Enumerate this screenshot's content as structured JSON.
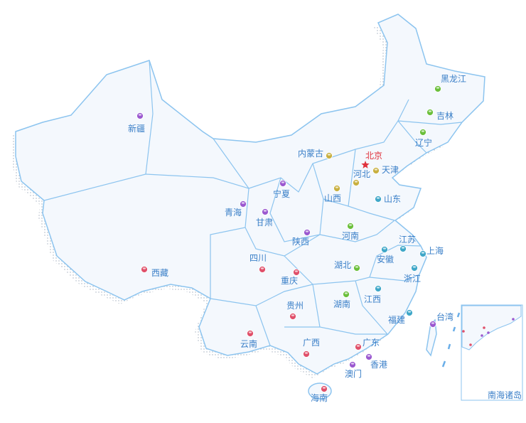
{
  "map": {
    "colors": {
      "land": "#f4f8fd",
      "border": "#8cc4ef",
      "coast": "#2a5cb0",
      "label": "#3a7fc8",
      "capital_label": "#e0323c"
    },
    "capital": {
      "name": "北京",
      "icon": "star-icon",
      "color": "#e0323c"
    },
    "provinces": [
      {
        "name": "新疆",
        "color": "#9b59d0"
      },
      {
        "name": "西藏",
        "color": "#e0506a"
      },
      {
        "name": "青海",
        "color": "#9b59d0"
      },
      {
        "name": "甘肃",
        "color": "#9b59d0"
      },
      {
        "name": "宁夏",
        "color": "#9b59d0"
      },
      {
        "name": "内蒙古",
        "color": "#c8b040"
      },
      {
        "name": "天津",
        "color": "#c8b040"
      },
      {
        "name": "河北",
        "color": "#c8b040"
      },
      {
        "name": "山西",
        "color": "#c8b040"
      },
      {
        "name": "山东",
        "color": "#3fa7c8"
      },
      {
        "name": "河南",
        "color": "#6bbf3b"
      },
      {
        "name": "陕西",
        "color": "#9b59d0"
      },
      {
        "name": "四川",
        "color": "#e0506a"
      },
      {
        "name": "重庆",
        "color": "#e0506a"
      },
      {
        "name": "湖北",
        "color": "#6bbf3b"
      },
      {
        "name": "安徽",
        "color": "#3fa7c8"
      },
      {
        "name": "江苏",
        "color": "#3fa7c8"
      },
      {
        "name": "上海",
        "color": "#3fa7c8"
      },
      {
        "name": "浙江",
        "color": "#3fa7c8"
      },
      {
        "name": "江西",
        "color": "#3fa7c8"
      },
      {
        "name": "湖南",
        "color": "#6bbf3b"
      },
      {
        "name": "贵州",
        "color": "#e0506a"
      },
      {
        "name": "云南",
        "color": "#e0506a"
      },
      {
        "name": "广西",
        "color": "#e0506a"
      },
      {
        "name": "广东",
        "color": "#e0506a"
      },
      {
        "name": "福建",
        "color": "#3fa7c8"
      },
      {
        "name": "台湾",
        "color": "#9b59d0"
      },
      {
        "name": "香港",
        "color": "#9b59d0"
      },
      {
        "name": "澳门",
        "color": "#9b59d0"
      },
      {
        "name": "海南",
        "color": "#e0506a"
      },
      {
        "name": "辽宁",
        "color": "#6bbf3b"
      },
      {
        "name": "吉林",
        "color": "#6bbf3b"
      },
      {
        "name": "黑龙江",
        "color": "#6bbf3b"
      }
    ],
    "inset": {
      "title": "南海诸岛"
    }
  }
}
